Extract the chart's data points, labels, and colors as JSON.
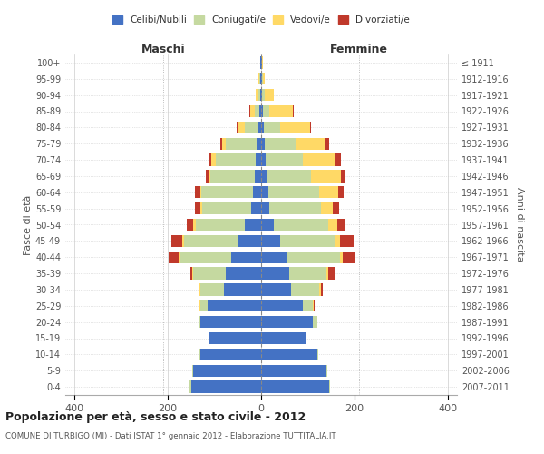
{
  "age_groups": [
    "0-4",
    "5-9",
    "10-14",
    "15-19",
    "20-24",
    "25-29",
    "30-34",
    "35-39",
    "40-44",
    "45-49",
    "50-54",
    "55-59",
    "60-64",
    "65-69",
    "70-74",
    "75-79",
    "80-84",
    "85-89",
    "90-94",
    "95-99",
    "100+"
  ],
  "birth_years": [
    "2007-2011",
    "2002-2006",
    "1997-2001",
    "1992-1996",
    "1987-1991",
    "1982-1986",
    "1977-1981",
    "1972-1976",
    "1967-1971",
    "1962-1966",
    "1957-1961",
    "1952-1956",
    "1947-1951",
    "1942-1946",
    "1937-1941",
    "1932-1936",
    "1927-1931",
    "1922-1926",
    "1917-1921",
    "1912-1916",
    "≤ 1911"
  ],
  "males": {
    "celibe": [
      150,
      145,
      130,
      110,
      130,
      115,
      80,
      75,
      65,
      50,
      35,
      22,
      18,
      13,
      12,
      10,
      5,
      3,
      1,
      1,
      1
    ],
    "coniugato": [
      3,
      2,
      2,
      2,
      5,
      15,
      50,
      70,
      110,
      115,
      105,
      105,
      110,
      95,
      85,
      65,
      30,
      10,
      5,
      2,
      1
    ],
    "vedovo": [
      0,
      0,
      0,
      0,
      0,
      2,
      2,
      2,
      2,
      5,
      5,
      3,
      3,
      5,
      10,
      8,
      15,
      10,
      5,
      2,
      0
    ],
    "divorziato": [
      0,
      0,
      0,
      0,
      0,
      0,
      3,
      5,
      22,
      22,
      15,
      12,
      10,
      5,
      5,
      5,
      2,
      2,
      0,
      0,
      0
    ]
  },
  "females": {
    "nubile": [
      145,
      140,
      120,
      95,
      110,
      90,
      65,
      60,
      55,
      40,
      28,
      18,
      15,
      12,
      10,
      8,
      5,
      3,
      2,
      1,
      1
    ],
    "coniugata": [
      3,
      2,
      2,
      3,
      10,
      20,
      60,
      80,
      115,
      120,
      115,
      110,
      110,
      95,
      80,
      65,
      35,
      15,
      5,
      2,
      1
    ],
    "vedova": [
      0,
      0,
      0,
      0,
      0,
      2,
      3,
      3,
      5,
      10,
      20,
      25,
      40,
      65,
      70,
      65,
      65,
      50,
      20,
      5,
      2
    ],
    "divorziata": [
      0,
      0,
      0,
      0,
      0,
      2,
      5,
      15,
      28,
      28,
      15,
      15,
      12,
      8,
      12,
      8,
      2,
      2,
      0,
      0,
      0
    ]
  },
  "colors": {
    "celibe": "#4472c4",
    "coniugato": "#c5d9a0",
    "vedovo": "#ffd966",
    "divorziato": "#c0392b"
  },
  "xlim": [
    -420,
    420
  ],
  "xticks": [
    -400,
    -200,
    0,
    200,
    400
  ],
  "xticklabels": [
    "400",
    "200",
    "0",
    "200",
    "400"
  ],
  "title": "Popolazione per età, sesso e stato civile - 2012",
  "subtitle": "COMUNE DI TURBIGO (MI) - Dati ISTAT 1° gennaio 2012 - Elaborazione TUTTITALIA.IT",
  "ylabel_left": "Fasce di età",
  "ylabel_right": "Anni di nascita",
  "label_maschi": "Maschi",
  "label_femmine": "Femmine",
  "legend_labels": [
    "Celibi/Nubili",
    "Coniugati/e",
    "Vedovi/e",
    "Divorziati/e"
  ],
  "bar_height": 0.75,
  "bg_color": "#ffffff",
  "grid_color": "#cccccc"
}
